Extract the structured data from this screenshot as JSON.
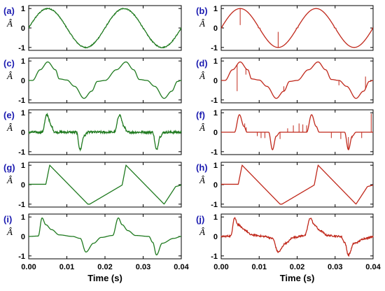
{
  "chart_data": {
    "type": "line",
    "xlabel": "Time (s)",
    "ylabel": "Â",
    "xlim": [
      0,
      0.04
    ],
    "ylim": [
      -1.15,
      1.15
    ],
    "xticks": [
      "0.00",
      "0.01",
      "0.02",
      "0.03",
      "0.04"
    ],
    "yticks": [
      "-1",
      "0",
      "1"
    ],
    "colors": {
      "left": "#1f7a1f",
      "right": "#c0281b",
      "letters": "#1a1ab0"
    },
    "panels": [
      {
        "label": "(a)",
        "kind": "sine",
        "column": "left"
      },
      {
        "label": "(b)",
        "kind": "sine_glitch",
        "column": "right"
      },
      {
        "label": "(c)",
        "kind": "rectified_hump",
        "column": "left"
      },
      {
        "label": "(d)",
        "kind": "rectified_hump_spikes",
        "column": "right"
      },
      {
        "label": "(e)",
        "kind": "pulse",
        "column": "left"
      },
      {
        "label": "(f)",
        "kind": "pulse_spikes",
        "column": "right"
      },
      {
        "label": "(g)",
        "kind": "sawtooth",
        "column": "left"
      },
      {
        "label": "(h)",
        "kind": "sawtooth",
        "column": "right"
      },
      {
        "label": "(i)",
        "kind": "sharp_decay",
        "column": "left"
      },
      {
        "label": "(j)",
        "kind": "sharp_decay_noisy",
        "column": "right"
      }
    ],
    "waveform_keypoints": {
      "sine": [
        [
          0.0,
          0
        ],
        [
          0.0025,
          0.72
        ],
        [
          0.005,
          1
        ],
        [
          0.0075,
          0.72
        ],
        [
          0.01,
          0
        ],
        [
          0.0125,
          -0.72
        ],
        [
          0.015,
          -1
        ],
        [
          0.0175,
          -0.72
        ],
        [
          0.02,
          0
        ],
        [
          0.0225,
          0.72
        ],
        [
          0.025,
          1
        ],
        [
          0.0275,
          0.72
        ],
        [
          0.03,
          0
        ],
        [
          0.0325,
          -0.72
        ],
        [
          0.035,
          -1
        ],
        [
          0.0375,
          -0.72
        ],
        [
          0.04,
          0
        ]
      ],
      "rectified_hump": [
        [
          0.0,
          0
        ],
        [
          0.001,
          0
        ],
        [
          0.003,
          0.55
        ],
        [
          0.005,
          0.95
        ],
        [
          0.007,
          0.55
        ],
        [
          0.008,
          0.08
        ],
        [
          0.01,
          0.02
        ],
        [
          0.012,
          -0.3
        ],
        [
          0.0145,
          -0.92
        ],
        [
          0.0165,
          -0.55
        ],
        [
          0.018,
          -0.05
        ],
        [
          0.02,
          0
        ],
        [
          0.023,
          0.55
        ],
        [
          0.0255,
          0.95
        ],
        [
          0.0275,
          0.55
        ],
        [
          0.029,
          0.05
        ],
        [
          0.031,
          0
        ],
        [
          0.033,
          -0.3
        ],
        [
          0.0355,
          -0.92
        ],
        [
          0.0375,
          -0.55
        ],
        [
          0.039,
          -0.05
        ],
        [
          0.04,
          0
        ]
      ],
      "pulse": [
        [
          0.0,
          0
        ],
        [
          0.0035,
          0
        ],
        [
          0.0048,
          0.9
        ],
        [
          0.006,
          0.3
        ],
        [
          0.0068,
          0
        ],
        [
          0.0125,
          0
        ],
        [
          0.0135,
          -0.9
        ],
        [
          0.0145,
          -0.2
        ],
        [
          0.0155,
          0
        ],
        [
          0.0225,
          0
        ],
        [
          0.0238,
          0.9
        ],
        [
          0.025,
          0.3
        ],
        [
          0.0258,
          0
        ],
        [
          0.0325,
          0
        ],
        [
          0.0335,
          -0.9
        ],
        [
          0.0345,
          -0.2
        ],
        [
          0.0355,
          0
        ],
        [
          0.04,
          0
        ]
      ],
      "sawtooth": [
        [
          0.0,
          0.02
        ],
        [
          0.0045,
          0.02
        ],
        [
          0.0055,
          1.0
        ],
        [
          0.0155,
          -1.0
        ],
        [
          0.016,
          -1.0
        ],
        [
          0.0245,
          -0.02
        ],
        [
          0.0255,
          1.0
        ],
        [
          0.0355,
          -1.0
        ],
        [
          0.0385,
          -0.1
        ],
        [
          0.04,
          -0.02
        ]
      ],
      "sharp_decay": [
        [
          0.0,
          0
        ],
        [
          0.0025,
          0.02
        ],
        [
          0.0035,
          0.95
        ],
        [
          0.0045,
          0.6
        ],
        [
          0.006,
          0.35
        ],
        [
          0.008,
          0.08
        ],
        [
          0.0115,
          0
        ],
        [
          0.0135,
          -0.1
        ],
        [
          0.015,
          -0.8
        ],
        [
          0.017,
          -0.35
        ],
        [
          0.019,
          -0.05
        ],
        [
          0.022,
          0.05
        ],
        [
          0.0235,
          0.95
        ],
        [
          0.0245,
          0.6
        ],
        [
          0.026,
          0.3
        ],
        [
          0.028,
          0.05
        ],
        [
          0.0315,
          0
        ],
        [
          0.0325,
          -0.3
        ],
        [
          0.0335,
          -0.95
        ],
        [
          0.035,
          -0.35
        ],
        [
          0.038,
          -0.1
        ],
        [
          0.04,
          0
        ]
      ]
    }
  }
}
